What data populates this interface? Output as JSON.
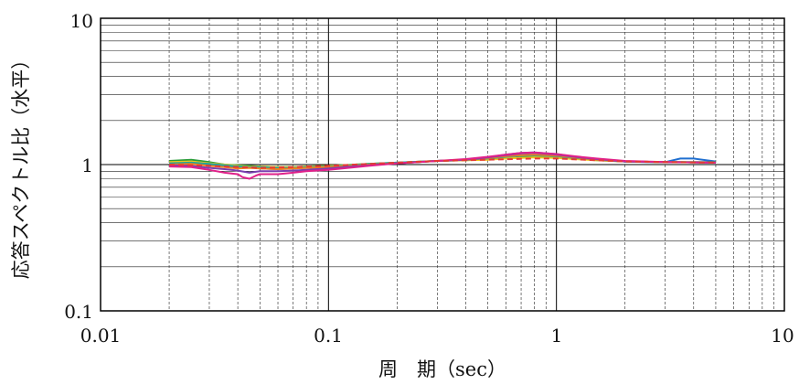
{
  "chart_data": {
    "type": "line",
    "title": "",
    "xlabel": "周　期（sec）",
    "ylabel": "応答スペクトル比（水平）",
    "x_scale": "log",
    "y_scale": "log",
    "xlim": [
      0.01,
      10
    ],
    "ylim": [
      0.1,
      10
    ],
    "x_ticks": [
      0.01,
      0.1,
      1,
      10
    ],
    "x_tick_labels": [
      "0.01",
      "0.1",
      "1",
      "10"
    ],
    "y_ticks": [
      0.1,
      1,
      10
    ],
    "y_tick_labels": [
      "0.1",
      "1",
      "10"
    ],
    "grid": true,
    "legend": "none",
    "series": [
      {
        "color": "#1f6fd0",
        "dash": "solid",
        "x": [
          0.02,
          0.025,
          0.03,
          0.035,
          0.04,
          0.045,
          0.05,
          0.06,
          0.07,
          0.08,
          0.1,
          0.15,
          0.2,
          0.3,
          0.4,
          0.5,
          0.6,
          0.7,
          0.8,
          1.0,
          1.2,
          1.5,
          2.0,
          2.5,
          3.0,
          3.5,
          4.0,
          5.0
        ],
        "y": [
          1.0,
          1.02,
          0.99,
          0.97,
          0.95,
          0.96,
          0.94,
          0.93,
          0.94,
          0.95,
          0.96,
          1.0,
          1.02,
          1.06,
          1.08,
          1.12,
          1.17,
          1.2,
          1.21,
          1.18,
          1.13,
          1.08,
          1.05,
          1.04,
          1.04,
          1.1,
          1.1,
          1.05
        ]
      },
      {
        "color": "#2a9d3a",
        "dash": "solid",
        "x": [
          0.02,
          0.025,
          0.03,
          0.035,
          0.04,
          0.045,
          0.05,
          0.06,
          0.07,
          0.08,
          0.1,
          0.15,
          0.2,
          0.3,
          0.4,
          0.5,
          0.6,
          0.7,
          0.8,
          1.0,
          1.2,
          1.5,
          2.0,
          3.0,
          5.0
        ],
        "y": [
          1.06,
          1.08,
          1.04,
          1.0,
          0.99,
          0.98,
          0.97,
          0.96,
          0.96,
          0.97,
          0.98,
          1.01,
          1.03,
          1.06,
          1.07,
          1.09,
          1.1,
          1.12,
          1.13,
          1.12,
          1.1,
          1.07,
          1.05,
          1.04,
          1.04
        ]
      },
      {
        "color": "#f0c419",
        "dash": "solid",
        "x": [
          0.02,
          0.025,
          0.03,
          0.035,
          0.04,
          0.045,
          0.05,
          0.06,
          0.07,
          0.08,
          0.1,
          0.15,
          0.2,
          0.3,
          0.4,
          0.5,
          0.6,
          0.7,
          0.8,
          1.0,
          1.2,
          1.5,
          2.0,
          3.0,
          5.0
        ],
        "y": [
          1.04,
          1.05,
          1.02,
          1.0,
          0.98,
          0.97,
          0.97,
          0.96,
          0.96,
          0.97,
          0.98,
          1.01,
          1.03,
          1.06,
          1.07,
          1.08,
          1.1,
          1.11,
          1.12,
          1.11,
          1.09,
          1.07,
          1.05,
          1.04,
          1.03
        ]
      },
      {
        "color": "#1aa6a0",
        "dash": "solid",
        "x": [
          0.02,
          0.025,
          0.03,
          0.035,
          0.04,
          0.045,
          0.05,
          0.06,
          0.07,
          0.08,
          0.1,
          0.15,
          0.2,
          0.3,
          0.4,
          0.5,
          0.6,
          0.7,
          0.8,
          1.0,
          1.2,
          1.5,
          2.0,
          3.0,
          5.0
        ],
        "y": [
          1.02,
          1.03,
          1.01,
          0.99,
          0.97,
          0.96,
          0.96,
          0.95,
          0.95,
          0.96,
          0.97,
          1.01,
          1.03,
          1.06,
          1.08,
          1.1,
          1.13,
          1.15,
          1.16,
          1.14,
          1.11,
          1.08,
          1.05,
          1.04,
          1.03
        ]
      },
      {
        "color": "#f07f1e",
        "dash": "solid",
        "x": [
          0.02,
          0.025,
          0.03,
          0.035,
          0.04,
          0.045,
          0.05,
          0.06,
          0.07,
          0.08,
          0.1,
          0.15,
          0.2,
          0.3,
          0.4,
          0.5,
          0.6,
          0.7,
          0.8,
          1.0,
          1.2,
          1.5,
          2.0,
          3.0,
          5.0
        ],
        "y": [
          1.0,
          1.01,
          0.98,
          0.96,
          0.94,
          0.95,
          0.94,
          0.93,
          0.94,
          0.95,
          0.96,
          1.0,
          1.02,
          1.06,
          1.08,
          1.11,
          1.14,
          1.16,
          1.17,
          1.15,
          1.12,
          1.08,
          1.05,
          1.04,
          1.03
        ]
      },
      {
        "color": "#7a3fb0",
        "dash": "solid",
        "x": [
          0.02,
          0.025,
          0.03,
          0.035,
          0.04,
          0.045,
          0.05,
          0.06,
          0.07,
          0.08,
          0.1,
          0.15,
          0.2,
          0.3,
          0.4,
          0.5,
          0.6,
          0.7,
          0.8,
          1.0,
          1.2,
          1.5,
          2.0,
          3.0,
          5.0
        ],
        "y": [
          0.99,
          0.98,
          0.95,
          0.93,
          0.91,
          0.88,
          0.9,
          0.9,
          0.91,
          0.92,
          0.94,
          0.99,
          1.02,
          1.06,
          1.08,
          1.12,
          1.16,
          1.19,
          1.2,
          1.17,
          1.13,
          1.09,
          1.05,
          1.04,
          1.03
        ]
      },
      {
        "color": "#e0218a",
        "dash": "solid",
        "x": [
          0.02,
          0.025,
          0.03,
          0.035,
          0.04,
          0.042,
          0.045,
          0.048,
          0.05,
          0.06,
          0.07,
          0.08,
          0.1,
          0.15,
          0.2,
          0.3,
          0.4,
          0.5,
          0.6,
          0.7,
          0.8,
          1.0,
          1.2,
          1.5,
          2.0,
          3.0,
          5.0
        ],
        "y": [
          0.97,
          0.96,
          0.92,
          0.88,
          0.86,
          0.82,
          0.8,
          0.84,
          0.86,
          0.86,
          0.88,
          0.9,
          0.92,
          0.98,
          1.02,
          1.06,
          1.09,
          1.13,
          1.17,
          1.2,
          1.21,
          1.18,
          1.14,
          1.1,
          1.06,
          1.04,
          1.03
        ]
      },
      {
        "color": "#e53935",
        "dash": "dashed",
        "x": [
          0.02,
          0.03,
          0.04,
          0.05,
          0.07,
          0.1,
          0.15,
          0.2,
          0.3,
          0.5,
          0.8,
          1.0,
          1.5,
          2.0,
          3.0,
          5.0
        ],
        "y": [
          1.0,
          0.98,
          0.96,
          0.95,
          0.96,
          0.98,
          1.01,
          1.03,
          1.06,
          1.08,
          1.1,
          1.1,
          1.07,
          1.05,
          1.04,
          1.03
        ]
      }
    ]
  }
}
